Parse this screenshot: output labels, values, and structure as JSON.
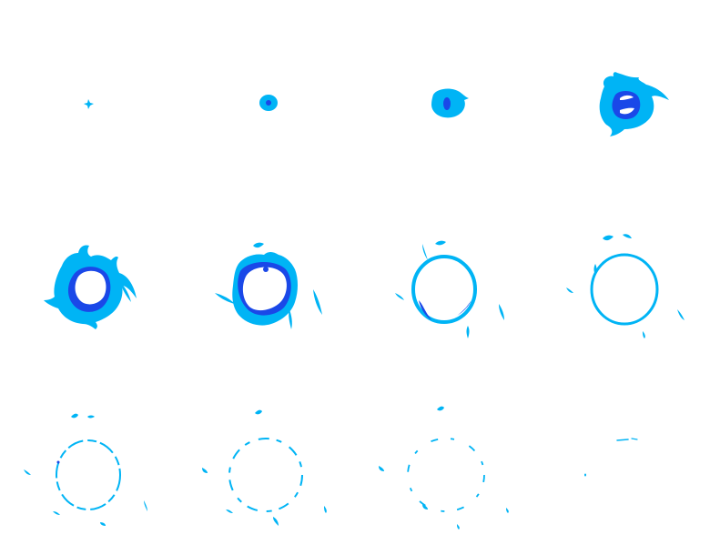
{
  "sheet": {
    "colors": {
      "background": "#ffffff",
      "outer": "#00b4f5",
      "inner": "#1a48e8",
      "core": "#ffffff"
    },
    "frames": [
      {
        "label": "frame-1",
        "stage": "spark"
      },
      {
        "label": "frame-2",
        "stage": "orb-small"
      },
      {
        "label": "frame-3",
        "stage": "orb-medium"
      },
      {
        "label": "frame-4",
        "stage": "orb-swirl"
      },
      {
        "label": "frame-5",
        "stage": "burst-full"
      },
      {
        "label": "frame-6",
        "stage": "burst-expand"
      },
      {
        "label": "frame-7",
        "stage": "ring-thick"
      },
      {
        "label": "frame-8",
        "stage": "ring-thin"
      },
      {
        "label": "frame-9",
        "stage": "ring-dashed"
      },
      {
        "label": "frame-10",
        "stage": "ring-broken"
      },
      {
        "label": "frame-11",
        "stage": "ring-fading"
      },
      {
        "label": "frame-12",
        "stage": "ring-dissipated"
      }
    ]
  }
}
